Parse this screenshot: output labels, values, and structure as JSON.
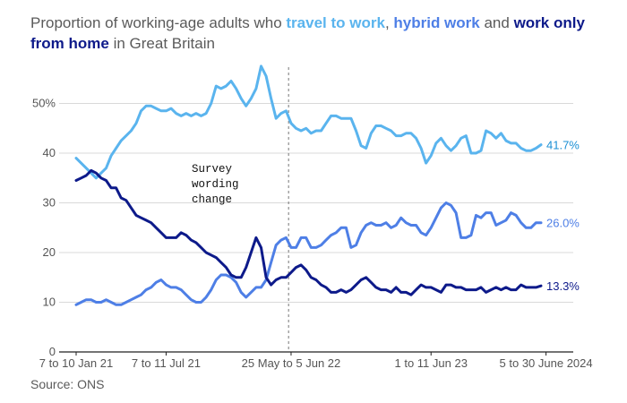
{
  "title": {
    "before": "Proportion of working-age adults who ",
    "travel": "travel to work",
    "sep1": ", ",
    "hybrid": "hybrid work",
    "sep2": " and ",
    "home": "work only from home",
    "after": " in Great Britain"
  },
  "source": "Source: ONS",
  "colors": {
    "travel": "#5ab4ee",
    "hybrid": "#4e7fe6",
    "home": "#0d1a8a",
    "travel_label": "#1a8fd4"
  },
  "chart_data": {
    "type": "line",
    "title": "Proportion of working-age adults who travel to work, hybrid work and work only from home in Great Britain",
    "ylim": [
      0,
      58
    ],
    "y_ticks": [
      "0",
      "10",
      "20",
      "30",
      "40",
      "50%"
    ],
    "y_tick_values": [
      0,
      10,
      20,
      30,
      40,
      50
    ],
    "x_tick_labels": [
      "7 to 10 Jan 21",
      "7 to 11 Jul 21",
      "25 May to 5 Jun 22",
      "1 to 11 Jun 23",
      "5 to 30 June 2024"
    ],
    "x_tick_positions": [
      0,
      18,
      43,
      71,
      94
    ],
    "x_range": [
      0,
      100
    ],
    "annotation": {
      "lines": [
        "Survey",
        "wording",
        "change"
      ],
      "x": 42.5
    },
    "series": [
      {
        "name": "travel to work",
        "color": "#5ab4ee",
        "end_label": "41.7%",
        "points": [
          [
            0,
            39
          ],
          [
            2,
            37
          ],
          [
            4,
            35
          ],
          [
            5,
            36
          ],
          [
            6,
            37
          ],
          [
            7,
            39.5
          ],
          [
            8,
            41
          ],
          [
            9,
            42.5
          ],
          [
            10,
            43.5
          ],
          [
            11,
            44.5
          ],
          [
            12,
            46
          ],
          [
            13,
            48.5
          ],
          [
            14,
            49.5
          ],
          [
            15,
            49.5
          ],
          [
            16,
            49
          ],
          [
            17,
            48.5
          ],
          [
            18,
            48.5
          ],
          [
            19,
            49
          ],
          [
            20,
            48
          ],
          [
            21,
            47.5
          ],
          [
            22,
            48
          ],
          [
            23,
            47.5
          ],
          [
            24,
            48
          ],
          [
            25,
            47.5
          ],
          [
            26,
            48
          ],
          [
            27,
            50
          ],
          [
            28,
            53.5
          ],
          [
            29,
            53
          ],
          [
            30,
            53.5
          ],
          [
            31,
            54.5
          ],
          [
            32,
            53
          ],
          [
            33,
            51
          ],
          [
            34,
            49.5
          ],
          [
            35,
            51
          ],
          [
            36,
            53
          ],
          [
            37,
            57.5
          ],
          [
            38,
            55.5
          ],
          [
            39,
            51
          ],
          [
            40,
            47
          ],
          [
            41,
            48
          ],
          [
            42,
            48.5
          ],
          [
            43,
            46
          ],
          [
            44,
            45
          ],
          [
            45,
            44.5
          ],
          [
            46,
            45
          ],
          [
            47,
            44
          ],
          [
            48,
            44.5
          ],
          [
            49,
            44.5
          ],
          [
            50,
            46
          ],
          [
            51,
            47.5
          ],
          [
            52,
            47.5
          ],
          [
            53,
            47
          ],
          [
            54,
            47
          ],
          [
            55,
            47
          ],
          [
            56,
            44.5
          ],
          [
            57,
            41.5
          ],
          [
            58,
            41
          ],
          [
            59,
            44
          ],
          [
            60,
            45.5
          ],
          [
            61,
            45.5
          ],
          [
            62,
            45
          ],
          [
            63,
            44.5
          ],
          [
            64,
            43.5
          ],
          [
            65,
            43.5
          ],
          [
            66,
            44
          ],
          [
            67,
            44
          ],
          [
            68,
            43
          ],
          [
            69,
            41
          ],
          [
            70,
            38
          ],
          [
            71,
            39.5
          ],
          [
            72,
            42
          ],
          [
            73,
            43
          ],
          [
            74,
            41.5
          ],
          [
            75,
            40.5
          ],
          [
            76,
            41.5
          ],
          [
            77,
            43
          ],
          [
            78,
            43.5
          ],
          [
            79,
            40
          ],
          [
            80,
            40
          ],
          [
            81,
            40.5
          ],
          [
            82,
            44.5
          ],
          [
            83,
            44
          ],
          [
            84,
            43
          ],
          [
            85,
            44
          ],
          [
            86,
            42.5
          ],
          [
            87,
            42
          ],
          [
            88,
            42
          ],
          [
            89,
            41
          ],
          [
            90,
            40.5
          ],
          [
            91,
            40.5
          ],
          [
            92,
            41
          ],
          [
            93,
            41.7
          ]
        ]
      },
      {
        "name": "hybrid work",
        "color": "#4e7fe6",
        "end_label": "26.0%",
        "points": [
          [
            0,
            9.5
          ],
          [
            1,
            10
          ],
          [
            2,
            10.5
          ],
          [
            3,
            10.5
          ],
          [
            4,
            10
          ],
          [
            5,
            10
          ],
          [
            6,
            10.5
          ],
          [
            7,
            10
          ],
          [
            8,
            9.5
          ],
          [
            9,
            9.5
          ],
          [
            10,
            10
          ],
          [
            11,
            10.5
          ],
          [
            12,
            11
          ],
          [
            13,
            11.5
          ],
          [
            14,
            12.5
          ],
          [
            15,
            13
          ],
          [
            16,
            14
          ],
          [
            17,
            14.5
          ],
          [
            18,
            13.5
          ],
          [
            19,
            13
          ],
          [
            20,
            13
          ],
          [
            21,
            12.5
          ],
          [
            22,
            11.5
          ],
          [
            23,
            10.5
          ],
          [
            24,
            10
          ],
          [
            25,
            10
          ],
          [
            26,
            11
          ],
          [
            27,
            12.5
          ],
          [
            28,
            14.5
          ],
          [
            29,
            15.5
          ],
          [
            30,
            15.5
          ],
          [
            31,
            15
          ],
          [
            32,
            14
          ],
          [
            33,
            12
          ],
          [
            34,
            11
          ],
          [
            35,
            12
          ],
          [
            36,
            13
          ],
          [
            37,
            13
          ],
          [
            38,
            14.5
          ],
          [
            39,
            18
          ],
          [
            40,
            21.5
          ],
          [
            41,
            22.5
          ],
          [
            42,
            23
          ],
          [
            43,
            21
          ],
          [
            44,
            21
          ],
          [
            45,
            23
          ],
          [
            46,
            23
          ],
          [
            47,
            21
          ],
          [
            48,
            21
          ],
          [
            49,
            21.5
          ],
          [
            50,
            22.5
          ],
          [
            51,
            23.5
          ],
          [
            52,
            24
          ],
          [
            53,
            25
          ],
          [
            54,
            25
          ],
          [
            55,
            21
          ],
          [
            56,
            21.5
          ],
          [
            57,
            24
          ],
          [
            58,
            25.5
          ],
          [
            59,
            26
          ],
          [
            60,
            25.5
          ],
          [
            61,
            25.5
          ],
          [
            62,
            26
          ],
          [
            63,
            25
          ],
          [
            64,
            25.5
          ],
          [
            65,
            27
          ],
          [
            66,
            26
          ],
          [
            67,
            25.5
          ],
          [
            68,
            25.5
          ],
          [
            69,
            24
          ],
          [
            70,
            23.5
          ],
          [
            71,
            25
          ],
          [
            72,
            27
          ],
          [
            73,
            29
          ],
          [
            74,
            30
          ],
          [
            75,
            29.5
          ],
          [
            76,
            28
          ],
          [
            77,
            23
          ],
          [
            78,
            23
          ],
          [
            79,
            23.5
          ],
          [
            80,
            27.5
          ],
          [
            81,
            27
          ],
          [
            82,
            28
          ],
          [
            83,
            28
          ],
          [
            84,
            25.5
          ],
          [
            85,
            26
          ],
          [
            86,
            26.5
          ],
          [
            87,
            28
          ],
          [
            88,
            27.5
          ],
          [
            89,
            26
          ],
          [
            90,
            25
          ],
          [
            91,
            25
          ],
          [
            92,
            26
          ],
          [
            93,
            26
          ]
        ]
      },
      {
        "name": "work only from home",
        "color": "#0d1a8a",
        "end_label": "13.3%",
        "points": [
          [
            0,
            34.5
          ],
          [
            1,
            35
          ],
          [
            2,
            35.5
          ],
          [
            3,
            36.5
          ],
          [
            4,
            36
          ],
          [
            5,
            35
          ],
          [
            6,
            34.5
          ],
          [
            7,
            33
          ],
          [
            8,
            33
          ],
          [
            9,
            31
          ],
          [
            10,
            30.5
          ],
          [
            11,
            29
          ],
          [
            12,
            27.5
          ],
          [
            13,
            27
          ],
          [
            14,
            26.5
          ],
          [
            15,
            26
          ],
          [
            16,
            25
          ],
          [
            17,
            24
          ],
          [
            18,
            23
          ],
          [
            19,
            23
          ],
          [
            20,
            23
          ],
          [
            21,
            24
          ],
          [
            22,
            23.5
          ],
          [
            23,
            22.5
          ],
          [
            24,
            22
          ],
          [
            25,
            21
          ],
          [
            26,
            20
          ],
          [
            27,
            19.5
          ],
          [
            28,
            19
          ],
          [
            29,
            18
          ],
          [
            30,
            17
          ],
          [
            31,
            15.5
          ],
          [
            32,
            15
          ],
          [
            33,
            15
          ],
          [
            34,
            17
          ],
          [
            35,
            20
          ],
          [
            36,
            23
          ],
          [
            37,
            21
          ],
          [
            38,
            15
          ],
          [
            39,
            13.5
          ],
          [
            40,
            14.5
          ],
          [
            41,
            15
          ],
          [
            42,
            15
          ],
          [
            43,
            16
          ],
          [
            44,
            17
          ],
          [
            45,
            17.5
          ],
          [
            46,
            16.5
          ],
          [
            47,
            15
          ],
          [
            48,
            14.5
          ],
          [
            49,
            13.5
          ],
          [
            50,
            13
          ],
          [
            51,
            12
          ],
          [
            52,
            12
          ],
          [
            53,
            12.5
          ],
          [
            54,
            12
          ],
          [
            55,
            12.5
          ],
          [
            56,
            13.5
          ],
          [
            57,
            14.5
          ],
          [
            58,
            15
          ],
          [
            59,
            14
          ],
          [
            60,
            13
          ],
          [
            61,
            12.5
          ],
          [
            62,
            12.5
          ],
          [
            63,
            12
          ],
          [
            64,
            13
          ],
          [
            65,
            12
          ],
          [
            66,
            12
          ],
          [
            67,
            11.5
          ],
          [
            68,
            12.5
          ],
          [
            69,
            13.5
          ],
          [
            70,
            13
          ],
          [
            71,
            13
          ],
          [
            72,
            12.5
          ],
          [
            73,
            12
          ],
          [
            74,
            13.5
          ],
          [
            75,
            13.5
          ],
          [
            76,
            13
          ],
          [
            77,
            13
          ],
          [
            78,
            12.5
          ],
          [
            79,
            12.5
          ],
          [
            80,
            12.5
          ],
          [
            81,
            13
          ],
          [
            82,
            12
          ],
          [
            83,
            12.5
          ],
          [
            84,
            13
          ],
          [
            85,
            12.5
          ],
          [
            86,
            13
          ],
          [
            87,
            12.5
          ],
          [
            88,
            12.5
          ],
          [
            89,
            13.5
          ],
          [
            90,
            13
          ],
          [
            91,
            13
          ],
          [
            92,
            13
          ],
          [
            93,
            13.3
          ]
        ]
      }
    ]
  }
}
